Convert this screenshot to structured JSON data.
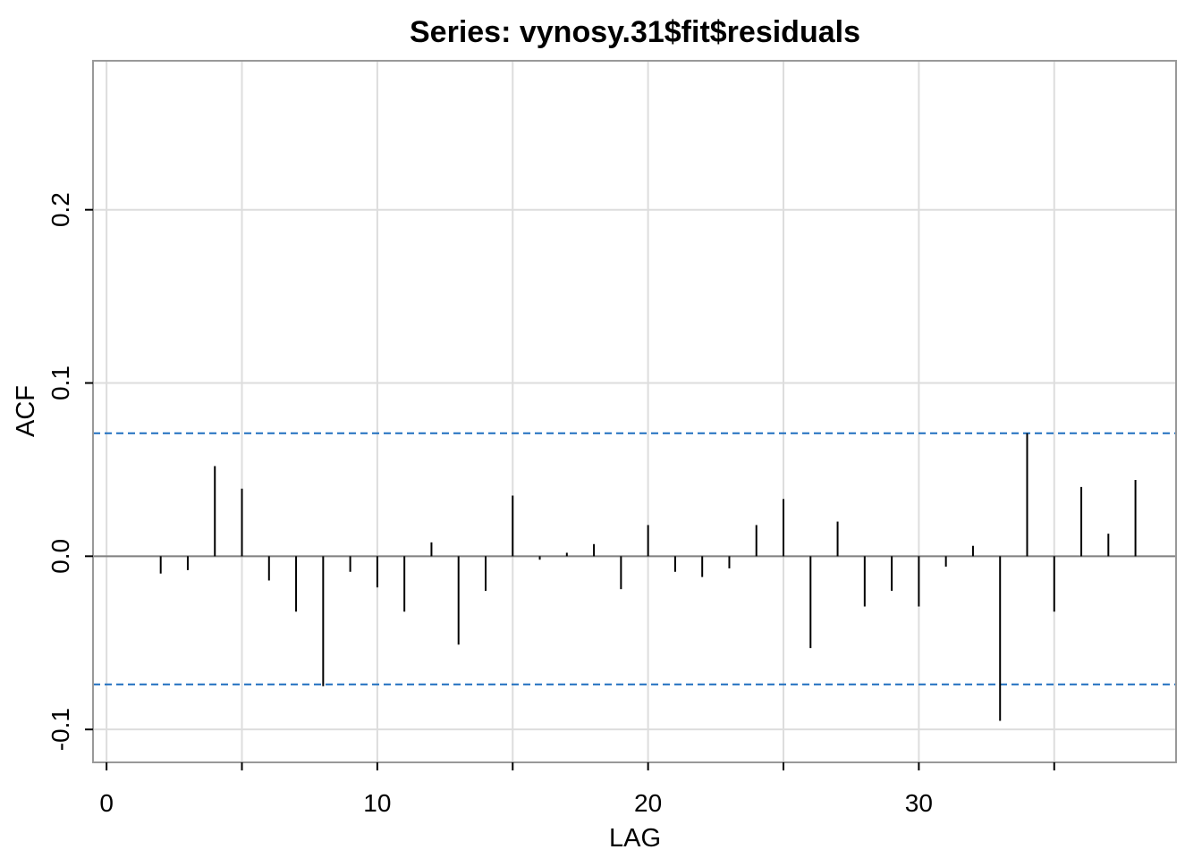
{
  "chart_data": {
    "type": "bar",
    "title": "Series:  vynosy.31$fit$residuals",
    "xlabel": "LAG",
    "ylabel": "ACF",
    "xlim": [
      -0.5,
      39.5
    ],
    "ylim": [
      -0.119,
      0.286
    ],
    "x_ticks": [
      0,
      5,
      10,
      15,
      20,
      25,
      30,
      35
    ],
    "x_tick_labels": [
      "0",
      "10",
      "20",
      "30"
    ],
    "x_labeled_ticks": [
      0,
      10,
      20,
      30
    ],
    "y_ticks": [
      -0.1,
      0.0,
      0.1,
      0.2
    ],
    "y_tick_labels": [
      "-0.1",
      "0.0",
      "0.1",
      "0.2"
    ],
    "grid": true,
    "confidence_bounds": [
      0.071,
      -0.074
    ],
    "colors": {
      "grid": "#dddddd",
      "frame": "#999999",
      "zero_line": "#808080",
      "bars": "#000000",
      "bounds": "#1f6fbf"
    },
    "lags": [
      2,
      3,
      4,
      5,
      6,
      7,
      8,
      9,
      10,
      11,
      12,
      13,
      14,
      15,
      16,
      17,
      18,
      19,
      20,
      21,
      22,
      23,
      24,
      25,
      26,
      27,
      28,
      29,
      30,
      31,
      32,
      33,
      34,
      35,
      36,
      37,
      38
    ],
    "values": [
      -0.01,
      -0.008,
      0.052,
      0.039,
      -0.014,
      -0.032,
      -0.075,
      -0.009,
      -0.018,
      -0.032,
      0.008,
      -0.051,
      -0.02,
      0.035,
      -0.002,
      0.002,
      0.007,
      -0.019,
      0.018,
      -0.009,
      -0.012,
      -0.007,
      0.018,
      0.033,
      -0.053,
      0.02,
      -0.029,
      -0.02,
      -0.029,
      -0.006,
      0.006,
      -0.095,
      0.071,
      -0.032,
      0.04,
      0.013,
      0.044
    ]
  }
}
